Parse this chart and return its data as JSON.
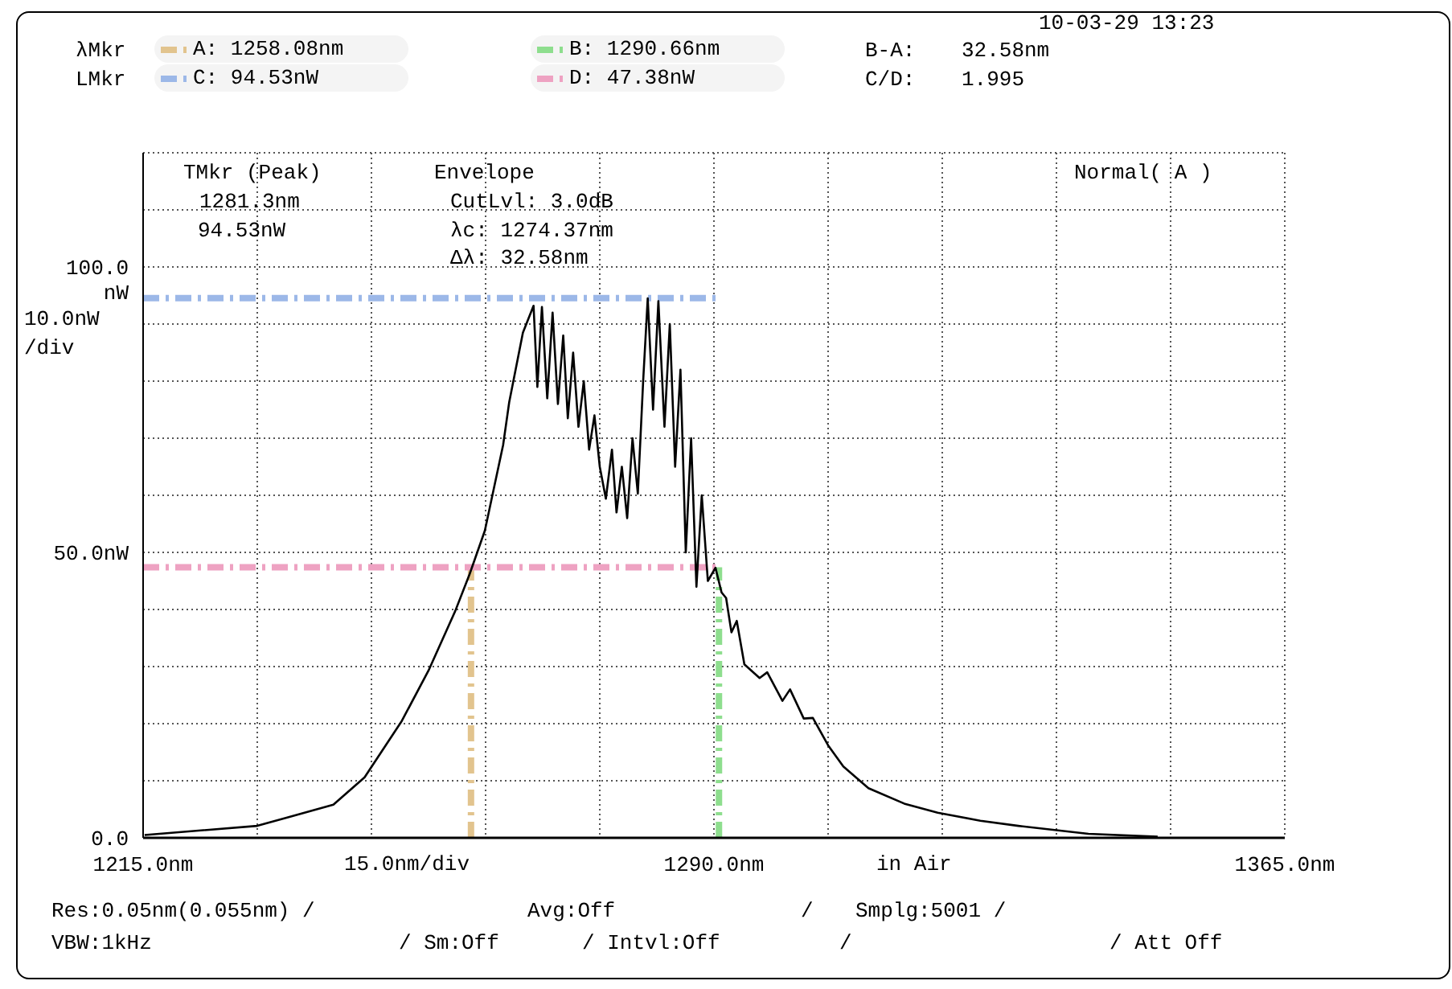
{
  "chart_data": {
    "type": "line",
    "ylabel": "10.0nW\n/div",
    "xlabel": "15.0nm/div",
    "annotations": [
      "10-03-29 13:23",
      "λMkr",
      "B-A:",
      "32.58nm",
      "LMkr",
      "C/D:",
      "1.995",
      "TMkr (Peak)",
      "1281.3nm",
      "94.53nW",
      "Envelope",
      "CutLvl: 3.0dB",
      "λc: 1274.37nm",
      "Δλ: 32.58nm",
      "Normal( A )",
      "in Air",
      "Res:0.05nm(0.055nm) /",
      "Avg:Off",
      "/",
      "Smplg:5001 /",
      "VBW:1kHz",
      "/ Sm:Off",
      "/ Intvl:Off",
      "/",
      "/ Att Off"
    ],
    "series": [
      {
        "color": "#000000",
        "x": [
          1215.2,
          1230,
          1240,
          1244.1,
          1249,
          1252.5,
          1256,
          1257.9,
          1259.9,
          1262.3,
          1263.1,
          1264.9,
          1266.3,
          1266.8,
          1267.4,
          1268.1,
          1268.8,
          1269.5,
          1270.2,
          1270.8,
          1271.5,
          1272.2,
          1272.9,
          1273.6,
          1274.3,
          1275,
          1275.8,
          1276.6,
          1277.2,
          1277.9,
          1278.6,
          1279.3,
          1280,
          1280.7,
          1281.3,
          1282,
          1282.7,
          1283.5,
          1284.2,
          1284.9,
          1285.6,
          1286.3,
          1287,
          1287.7,
          1288.4,
          1289.2,
          1290.2,
          1291,
          1291.6,
          1292.3,
          1293,
          1294,
          1296,
          1297,
          1299,
          1300,
          1301.8,
          1303,
          1305,
          1307,
          1310.3,
          1315,
          1319.4,
          1325,
          1330,
          1339.2,
          1348.3
        ],
        "values": [
          0.5,
          2.1,
          5.8,
          10.6,
          20.5,
          29.3,
          39.7,
          46.2,
          53.8,
          68.8,
          76.3,
          88.5,
          93.2,
          79,
          93,
          77,
          92,
          76,
          88,
          73.5,
          85,
          72,
          80,
          68,
          74,
          65,
          59.4,
          68,
          57,
          65,
          56,
          70,
          60.3,
          80,
          94.5,
          75,
          94,
          72,
          90,
          65,
          82,
          50,
          70,
          44,
          60,
          45,
          47.3,
          43,
          42,
          36,
          38,
          30.4,
          28,
          29,
          24,
          26,
          20.9,
          21,
          16.2,
          12.5,
          8.7,
          6,
          4.4,
          3,
          2.1,
          0.7,
          0.2
        ]
      }
    ],
    "xlim": [
      1215,
      1365
    ],
    "xticks": [
      {
        "value": 1215,
        "label": "1215.0nm"
      },
      {
        "value": 1230,
        "label": null
      },
      {
        "value": 1245,
        "label": null
      },
      {
        "value": 1260,
        "label": null
      },
      {
        "value": 1275,
        "label": null
      },
      {
        "value": 1290,
        "label": "1290.0nm"
      },
      {
        "value": 1305,
        "label": null
      },
      {
        "value": 1320,
        "label": null
      },
      {
        "value": 1335,
        "label": null
      },
      {
        "value": 1350,
        "label": null
      },
      {
        "value": 1365,
        "label": "1365.0nm"
      }
    ],
    "ylim": [
      0,
      120
    ],
    "yticks": [
      {
        "value": 0,
        "label": "0.0"
      },
      {
        "value": 10,
        "label": null
      },
      {
        "value": 20,
        "label": null
      },
      {
        "value": 30,
        "label": null
      },
      {
        "value": 40,
        "label": null
      },
      {
        "value": 50,
        "label": "50.0nW"
      },
      {
        "value": 60,
        "label": null
      },
      {
        "value": 70,
        "label": null
      },
      {
        "value": 80,
        "label": null
      },
      {
        "value": 90,
        "label": null
      },
      {
        "value": 100,
        "label": "100.0\nnW"
      },
      {
        "value": 110,
        "label": null
      },
      {
        "value": 120,
        "label": null
      }
    ],
    "ref_lines": [
      {
        "axis": "x",
        "value": 1258.08,
        "label": "A: 1258.08nm",
        "color": "#e2c48e",
        "line_style": "dashed"
      },
      {
        "axis": "x",
        "value": 1290.66,
        "label": "B: 1290.66nm",
        "color": "#8ede8e",
        "line_style": "dashed"
      },
      {
        "axis": "y",
        "value": 94.53,
        "label": "C: 94.53nW",
        "color": "#9cb8e8",
        "line_style": "dashed"
      },
      {
        "axis": "y",
        "value": 47.38,
        "label": "D: 47.38nW",
        "color": "#eea2c2",
        "line_style": "dashed"
      }
    ],
    "grid": true,
    "legend": "top left",
    "marker": "none",
    "line_style": "solid"
  }
}
